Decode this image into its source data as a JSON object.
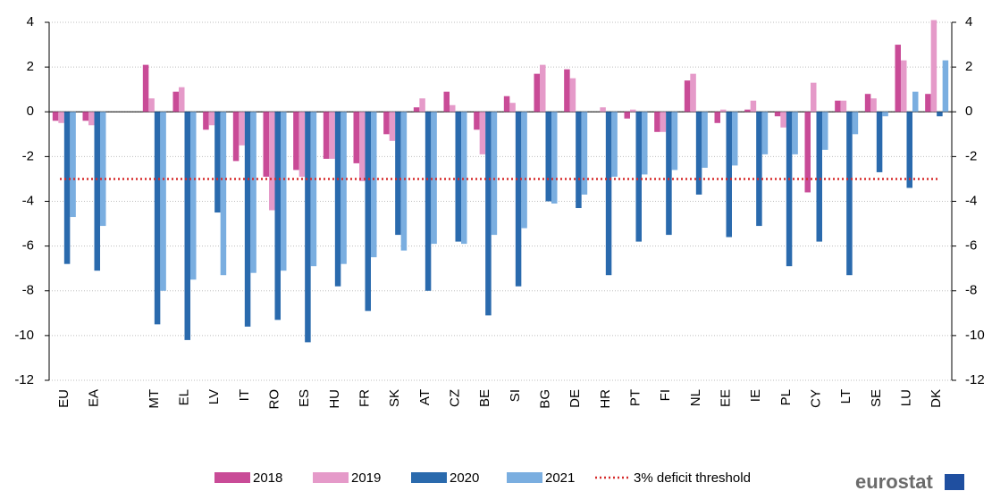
{
  "chart_data": {
    "type": "bar",
    "categories": [
      "EU",
      "EA",
      null,
      "MT",
      "EL",
      "LV",
      "IT",
      "RO",
      "ES",
      "HU",
      "FR",
      "SK",
      "AT",
      "CZ",
      "BE",
      "SI",
      "BG",
      "DE",
      "HR",
      "PT",
      "FI",
      "NL",
      "EE",
      "IE",
      "PL",
      "CY",
      "LT",
      "SE",
      "LU",
      "DK"
    ],
    "series": [
      {
        "name": "2018",
        "color": "#c94b97",
        "values": [
          -0.4,
          -0.4,
          null,
          2.1,
          0.9,
          -0.8,
          -2.2,
          -2.9,
          -2.6,
          -2.1,
          -2.3,
          -1.0,
          0.2,
          0.9,
          -0.8,
          0.7,
          1.7,
          1.9,
          0.0,
          -0.3,
          -0.9,
          1.4,
          -0.5,
          0.1,
          -0.2,
          -3.6,
          0.5,
          0.8,
          3.0,
          0.8
        ]
      },
      {
        "name": "2019",
        "color": "#e59ac9",
        "values": [
          -0.5,
          -0.6,
          null,
          0.6,
          1.1,
          -0.6,
          -1.5,
          -4.4,
          -2.9,
          -2.1,
          -3.1,
          -1.3,
          0.6,
          0.3,
          -1.9,
          0.4,
          2.1,
          1.5,
          0.2,
          0.1,
          -0.9,
          1.7,
          0.1,
          0.5,
          -0.7,
          1.3,
          0.5,
          0.6,
          2.3,
          4.1
        ]
      },
      {
        "name": "2020",
        "color": "#2a6aad",
        "values": [
          -6.8,
          -7.1,
          null,
          -9.5,
          -10.2,
          -4.5,
          -9.6,
          -9.3,
          -10.3,
          -7.8,
          -8.9,
          -5.5,
          -8.0,
          -5.8,
          -9.1,
          -7.8,
          -4.0,
          -4.3,
          -7.3,
          -5.8,
          -5.5,
          -3.7,
          -5.6,
          -5.1,
          -6.9,
          -5.8,
          -7.3,
          -2.7,
          -3.4,
          -0.2
        ]
      },
      {
        "name": "2021",
        "color": "#7aaee0",
        "values": [
          -4.7,
          -5.1,
          null,
          -8.0,
          -7.5,
          -7.3,
          -7.2,
          -7.1,
          -6.9,
          -6.8,
          -6.5,
          -6.2,
          -5.9,
          -5.9,
          -5.5,
          -5.2,
          -4.1,
          -3.7,
          -2.9,
          -2.8,
          -2.6,
          -2.5,
          -2.4,
          -1.9,
          -1.9,
          -1.7,
          -1.0,
          -0.2,
          0.9,
          2.3
        ]
      }
    ],
    "threshold": {
      "name": "3% deficit threshold",
      "value": -3,
      "color": "#d62b2b"
    },
    "ylim": [
      -12,
      4
    ],
    "yticks": [
      -12,
      -10,
      -8,
      -6,
      -4,
      -2,
      0,
      2,
      4
    ],
    "y2lim": [
      -12,
      4
    ],
    "y2ticks": [
      -12,
      -10,
      -8,
      -6,
      -4,
      -2,
      0,
      2,
      4
    ],
    "grid": true,
    "legend": "bottom",
    "logo": "eurostat"
  }
}
